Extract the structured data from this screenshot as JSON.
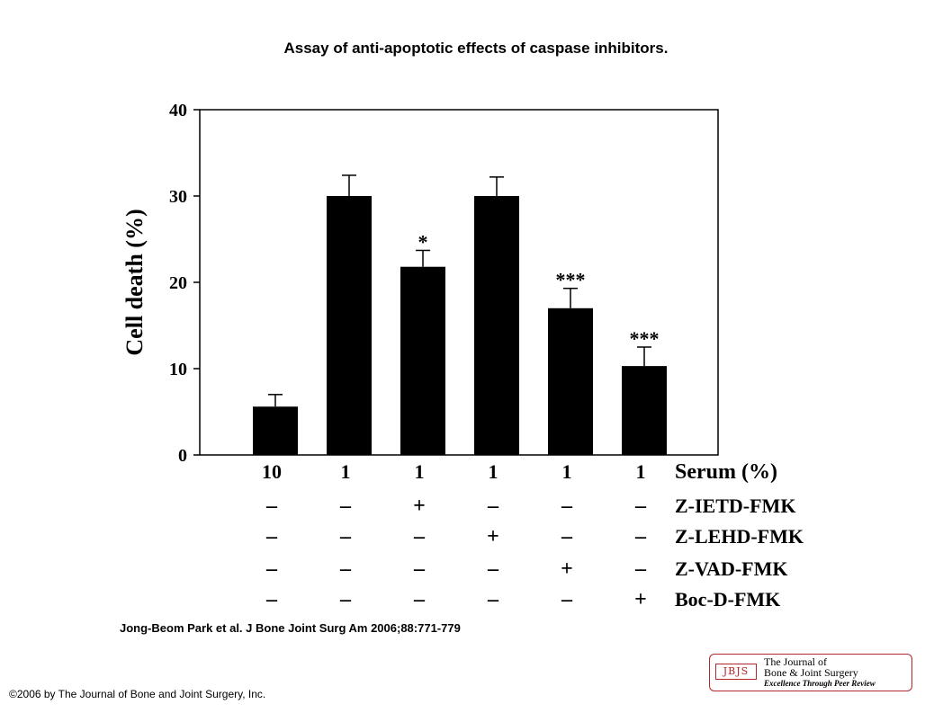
{
  "title": "Assay of anti-apoptotic effects of caspase inhibitors.",
  "citation": "Jong-Beom Park et al. J Bone Joint Surg Am 2006;88:771-779",
  "copyright": "©2006 by The Journal of Bone and Joint Surgery, Inc.",
  "logo": {
    "abbr": "JBJS",
    "line1": "The Journal of",
    "line2": "Bone & Joint Surgery",
    "line3": "Excellence Through Peer Review"
  },
  "chart_data": {
    "type": "bar",
    "ylabel": "Cell death (%)",
    "ylim": [
      0,
      40
    ],
    "yticks": [
      0,
      10,
      20,
      30,
      40
    ],
    "grid": false,
    "values": [
      5.6,
      30.0,
      21.8,
      30.0,
      17.0,
      10.3
    ],
    "errors": [
      1.4,
      2.4,
      1.9,
      2.2,
      2.3,
      2.2
    ],
    "annotations": [
      "",
      "",
      "*",
      "",
      "***",
      "***"
    ],
    "bar_color": "#000000",
    "conditions": [
      {
        "name": "Serum (%)",
        "values": [
          "10",
          "1",
          "1",
          "1",
          "1",
          "1"
        ]
      },
      {
        "name": "Z-IETD-FMK",
        "values": [
          "–",
          "–",
          "+",
          "–",
          "–",
          "–"
        ]
      },
      {
        "name": "Z-LEHD-FMK",
        "values": [
          "–",
          "–",
          "–",
          "+",
          "–",
          "–"
        ]
      },
      {
        "name": "Z-VAD-FMK",
        "values": [
          "–",
          "–",
          "–",
          "–",
          "+",
          "–"
        ]
      },
      {
        "name": "Boc-D-FMK",
        "values": [
          "–",
          "–",
          "–",
          "–",
          "–",
          "+"
        ]
      }
    ]
  }
}
